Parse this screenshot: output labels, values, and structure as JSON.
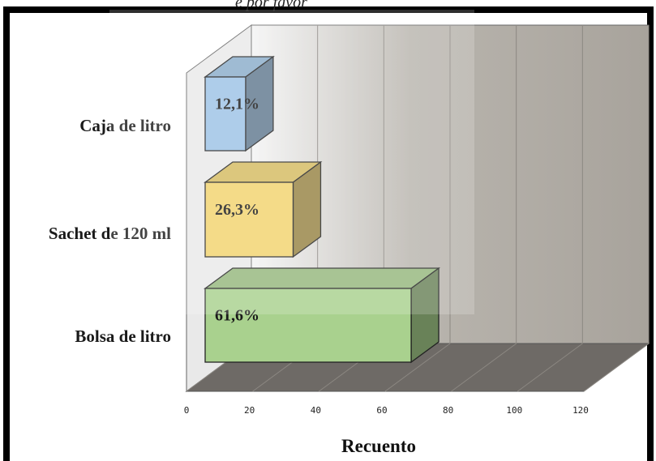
{
  "header_fragment": "e por favor",
  "colors": {
    "blue": "#9dc3e6",
    "yellow": "#f2d46e",
    "green": "#a9d18e"
  },
  "chart_data": {
    "type": "bar",
    "orientation": "horizontal",
    "three_d": true,
    "categories": [
      "Caja de litro",
      "Sachet de 120 ml",
      "Bolsa de litro"
    ],
    "values": [
      12.1,
      26.3,
      61.6
    ],
    "data_labels": [
      "12,1%",
      "26,3%",
      "61,6%"
    ],
    "xlabel": "Recuento",
    "ylabel": "",
    "xlim": [
      0,
      120
    ],
    "xticks": [
      "0",
      "20",
      "40",
      "60",
      "80",
      "100",
      "120"
    ],
    "grid": true
  }
}
